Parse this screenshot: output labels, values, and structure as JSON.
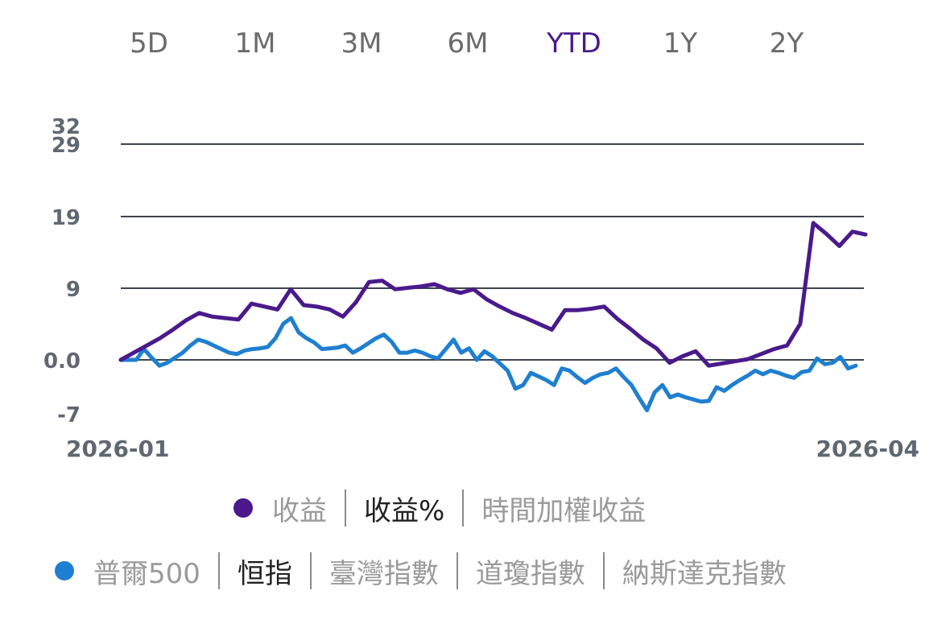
{
  "range_tabs": [
    "5D",
    "1M",
    "3M",
    "6M",
    "YTD",
    "1Y",
    "2Y"
  ],
  "active_range": "YTD",
  "colors": {
    "primary_series": "#4a1a8c",
    "benchmark_series": "#1f7fd0",
    "gridline": "#3c4450",
    "axis_text": "#5f6872",
    "active_tab": "#4a1a8c"
  },
  "chart_data": {
    "type": "line",
    "title": "",
    "xlabel": "",
    "ylabel": "",
    "y_ticks": [
      "32",
      "29",
      "19",
      "9",
      "0.0",
      "-7"
    ],
    "x_tick_labels": [
      "2026-01",
      "2026-04"
    ],
    "grid": true,
    "series": [
      {
        "name": "收益%",
        "color": "#4a1a8c",
        "values": [
          0,
          1,
          2,
          3,
          4.2,
          5.5,
          6.5,
          6.0,
          5.8,
          5.6,
          7.8,
          7.4,
          7.0,
          9.8,
          7.6,
          7.4,
          7.0,
          6.0,
          8.0,
          10.8,
          11.0,
          9.8,
          10,
          10.2,
          10.5,
          9.8,
          9.3,
          9.8,
          8.4,
          7.4,
          6.5,
          5.8,
          5.0,
          4.2,
          6.9,
          6.9,
          7.1,
          7.4,
          5.7,
          4.3,
          2.8,
          1.6,
          -0.4,
          0.5,
          1.2,
          -0.8,
          -0.5,
          -0.2,
          0.1,
          0.8,
          1.5,
          2.0,
          5.0,
          19.0,
          17.5,
          15.8,
          17.8,
          17.4
        ]
      },
      {
        "name": "恒指",
        "color": "#1f7fd0",
        "values": [
          0,
          0,
          0,
          1.5,
          0.3,
          -0.8,
          -0.4,
          0.3,
          1.0,
          2.0,
          2.8,
          2.5,
          2.0,
          1.5,
          1.0,
          0.8,
          1.3,
          1.5,
          1.6,
          1.8,
          3.0,
          5.0,
          5.8,
          3.8,
          3.0,
          2.4,
          1.5,
          1.6,
          1.7,
          2.0,
          1.0,
          1.6,
          2.3,
          3.0,
          3.5,
          2.5,
          1.0,
          1.0,
          1.3,
          1.0,
          0.5,
          0.2,
          1.5,
          2.8,
          1.0,
          1.6,
          0.0,
          1.2,
          0.5,
          -0.5,
          -1.5,
          -4.0,
          -3.5,
          -1.8,
          -2.3,
          -2.8,
          -3.5,
          -1.2,
          -1.5,
          -2.4,
          -3.2,
          -2.5,
          -2.0,
          -1.8,
          -1.2,
          -2.4,
          -3.5,
          -5.3,
          -7.0,
          -4.5,
          -3.5,
          -5.2,
          -4.8,
          -5.2,
          -5.5,
          -5.8,
          -5.7,
          -3.8,
          -4.3,
          -3.5,
          -2.8,
          -2.2,
          -1.5,
          -2.0,
          -1.5,
          -1.8,
          -2.2,
          -2.5,
          -1.7,
          -1.5,
          0.2,
          -0.6,
          -0.4,
          0.4,
          -1.2,
          -0.8
        ]
      }
    ]
  },
  "legend_rows": [
    {
      "dot_color": "#4a1a8c",
      "items": [
        "收益",
        "收益%",
        "時間加權收益"
      ],
      "active_index": 1
    },
    {
      "dot_color": "#1f7fd0",
      "items": [
        "普爾500",
        "恒指",
        "臺灣指數",
        "道瓊指數",
        "納斯達克指數"
      ],
      "active_index": 1
    }
  ]
}
